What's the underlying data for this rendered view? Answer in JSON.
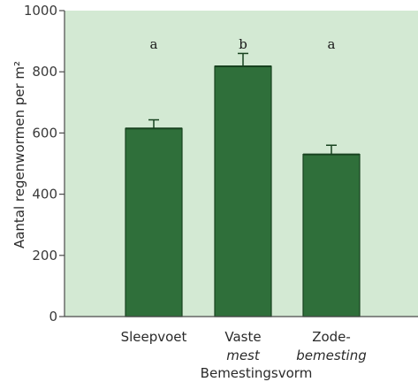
{
  "chart_data": {
    "type": "bar",
    "categories": [
      [
        "Sleepvoet"
      ],
      [
        "Vaste",
        "mest"
      ],
      [
        "Zode-",
        "bemesting"
      ]
    ],
    "category_italic_lines": [
      [
        false
      ],
      [
        false,
        true
      ],
      [
        false,
        true
      ]
    ],
    "values": [
      615,
      818,
      530
    ],
    "error": [
      28,
      42,
      30
    ],
    "significance": [
      "a",
      "b",
      "a"
    ],
    "xlabel": "Bemestingsvorm",
    "ylabel": "Aantal regenwormen per m²",
    "ylim": [
      0,
      1000
    ],
    "yticks": [
      0,
      200,
      400,
      600,
      800,
      1000
    ],
    "ytick_labels": [
      "0",
      "200",
      "400",
      "600",
      "800",
      "1000"
    ],
    "grid": false,
    "colors": {
      "plot_background": "#d3e9d3",
      "bar_fill": "#2f6f3a",
      "bar_edge": "#17421f",
      "error_bar": "#17421f",
      "axis": "#4a4a4a"
    }
  }
}
